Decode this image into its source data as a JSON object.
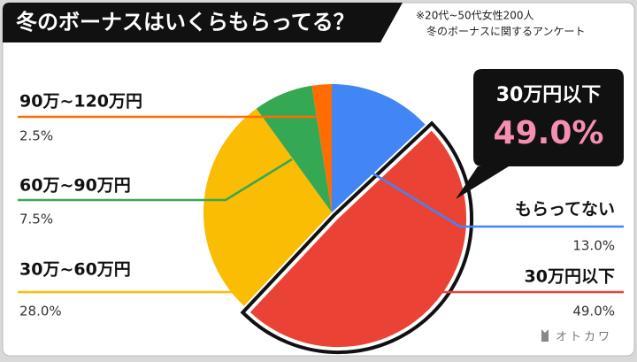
{
  "chart_data": {
    "type": "pie",
    "title": "冬のボーナスはいくらもらってる？",
    "notes": [
      "※20代~50代女性200人",
      "冬のボーナスに関するアンケート"
    ],
    "categories": [
      "もらってない",
      "30万円以下",
      "30万~60万円",
      "60万~90万円",
      "90万~120万円"
    ],
    "values": [
      13.0,
      49.0,
      28.0,
      7.5,
      2.5
    ],
    "value_labels": [
      "13.0%",
      "49.0%",
      "28.0%",
      "7.5%",
      "2.5%"
    ],
    "colors": [
      "#4285f4",
      "#ea4335",
      "#fbbc04",
      "#34a853",
      "#ff6d01"
    ],
    "highlight": 1,
    "brand": "オトカワ"
  }
}
